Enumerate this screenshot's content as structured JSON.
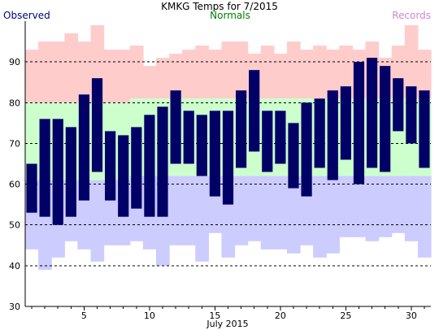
{
  "chart_data": {
    "type": "bar",
    "title": "KMKG Temps for 7/2015",
    "legend": {
      "observed": "Observed",
      "normals": "Normals",
      "records": "Records"
    },
    "colors": {
      "observed": "#000066",
      "observed_label": "#000080",
      "normals_band": "#ccffcc",
      "normals_label": "#008000",
      "record_high_band": "#ffcccc",
      "record_low_band": "#ccccff",
      "records_label": "#cc88cc",
      "grid": "#000000"
    },
    "xlabel": "July 2015",
    "x_ticks": [
      5,
      10,
      15,
      20,
      25,
      30
    ],
    "xlim": [
      1,
      31
    ],
    "ylim": [
      30,
      100
    ],
    "y_ticks": [
      30,
      40,
      50,
      60,
      70,
      80,
      90
    ],
    "grid": "dashed horizontal",
    "days": [
      1,
      2,
      3,
      4,
      5,
      6,
      7,
      8,
      9,
      10,
      11,
      12,
      13,
      14,
      15,
      16,
      17,
      18,
      19,
      20,
      21,
      22,
      23,
      24,
      25,
      26,
      27,
      28,
      29,
      30,
      31
    ],
    "observed_high": [
      65,
      76,
      76,
      74,
      82,
      86,
      73,
      72,
      74,
      77,
      79,
      83,
      78,
      77,
      78,
      78,
      83,
      88,
      78,
      78,
      75,
      80,
      81,
      83,
      84,
      90,
      91,
      89,
      86,
      84,
      83
    ],
    "observed_low": [
      53,
      52,
      50,
      52,
      56,
      63,
      56,
      52,
      54,
      52,
      52,
      65,
      65,
      62,
      57,
      55,
      64,
      68,
      63,
      65,
      59,
      57,
      64,
      61,
      66,
      60,
      64,
      63,
      73,
      70,
      64
    ],
    "normal_high": [
      80,
      80,
      80,
      80,
      80,
      80,
      80,
      80,
      81,
      81,
      81,
      81,
      81,
      81,
      81,
      81,
      81,
      81,
      81,
      81,
      81,
      81,
      81,
      81,
      81,
      81,
      81,
      81,
      81,
      81,
      81
    ],
    "normal_low": [
      61,
      61,
      61,
      61,
      61,
      61,
      61,
      61,
      62,
      62,
      62,
      62,
      62,
      62,
      62,
      62,
      62,
      62,
      62,
      62,
      62,
      62,
      62,
      62,
      62,
      62,
      62,
      62,
      62,
      62,
      62
    ],
    "record_high": [
      93,
      95,
      95,
      97,
      95,
      99,
      93,
      93,
      94,
      89,
      91,
      92,
      93,
      94,
      93,
      95,
      95,
      92,
      94,
      92,
      95,
      93,
      94,
      93,
      94,
      93,
      95,
      91,
      94,
      99,
      93
    ],
    "record_low": [
      44,
      39,
      42,
      46,
      44,
      41,
      45,
      45,
      46,
      44,
      40,
      45,
      45,
      41,
      48,
      42,
      45,
      46,
      44,
      44,
      43,
      45,
      42,
      43,
      47,
      47,
      46,
      47,
      48,
      46,
      42
    ]
  }
}
